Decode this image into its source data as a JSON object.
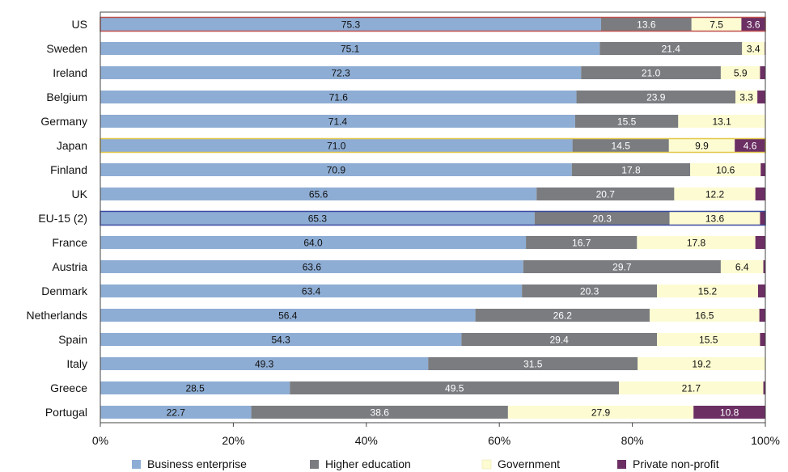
{
  "chart_data": {
    "type": "bar",
    "orientation": "horizontal",
    "stacked": true,
    "categories": [
      "US",
      "Sweden",
      "Ireland",
      "Belgium",
      "Germany",
      "Japan",
      "Finland",
      "UK",
      "EU-15 (2)",
      "France",
      "Austria",
      "Denmark",
      "Netherlands",
      "Spain",
      "Italy",
      "Greece",
      "Portugal"
    ],
    "series": [
      {
        "name": "Business enterprise",
        "color": "#8eadd4",
        "values": [
          75.3,
          75.1,
          72.3,
          71.6,
          71.4,
          71.0,
          70.9,
          65.6,
          65.3,
          64.0,
          63.6,
          63.4,
          56.4,
          54.3,
          49.3,
          28.5,
          22.7
        ],
        "labels": [
          "75.3",
          "75.1",
          "72.3",
          "71.6",
          "71.4",
          "71.0",
          "70.9",
          "65.6",
          "65.3",
          "64.0",
          "63.6",
          "63.4",
          "56.4",
          "54.3",
          "49.3",
          "28.5",
          "22.7"
        ]
      },
      {
        "name": "Higher education",
        "color": "#7a7c80",
        "values": [
          13.6,
          21.4,
          21.0,
          23.9,
          15.5,
          14.5,
          17.8,
          20.7,
          20.3,
          16.7,
          29.7,
          20.3,
          26.2,
          29.4,
          31.5,
          49.5,
          38.6
        ],
        "labels": [
          "13.6",
          "21.4",
          "21.0",
          "23.9",
          "15.5",
          "14.5",
          "17.8",
          "20.7",
          "20.3",
          "16.7",
          "29.7",
          "20.3",
          "26.2",
          "29.4",
          "31.5",
          "49.5",
          "38.6"
        ]
      },
      {
        "name": "Government",
        "color": "#fdfbd1",
        "values": [
          7.5,
          3.4,
          5.9,
          3.3,
          13.1,
          9.9,
          10.6,
          12.2,
          13.6,
          17.8,
          6.4,
          15.2,
          16.5,
          15.5,
          19.2,
          21.7,
          27.9
        ],
        "labels": [
          "7.5",
          "3.4",
          "5.9",
          "3.3",
          "13.1",
          "9.9",
          "10.6",
          "12.2",
          "13.6",
          "17.8",
          "6.4",
          "15.2",
          "16.5",
          "15.5",
          "19.2",
          "21.7",
          "27.9"
        ]
      },
      {
        "name": "Private non-profit",
        "color": "#6b2f63",
        "values": [
          3.6,
          0.1,
          0.8,
          1.2,
          0.0,
          4.6,
          0.7,
          1.5,
          0.8,
          1.5,
          0.3,
          1.1,
          0.9,
          0.8,
          0.0,
          0.3,
          10.8
        ],
        "labels": [
          "3.6",
          "",
          "",
          "",
          "",
          "4.6",
          "",
          "",
          "",
          "",
          "",
          "",
          "",
          "",
          "",
          "",
          "10.8"
        ]
      }
    ],
    "highlights": {
      "US": "#c0504d",
      "Japan": "#e2c84a",
      "EU-15 (2)": "#3a4aa0"
    },
    "xaxis": {
      "ticks": [
        0,
        20,
        40,
        60,
        80,
        100
      ],
      "tick_labels": [
        "0%",
        "20%",
        "40%",
        "60%",
        "80%",
        "100%"
      ]
    },
    "xlim": [
      0,
      100
    ],
    "legend_position": "bottom"
  }
}
